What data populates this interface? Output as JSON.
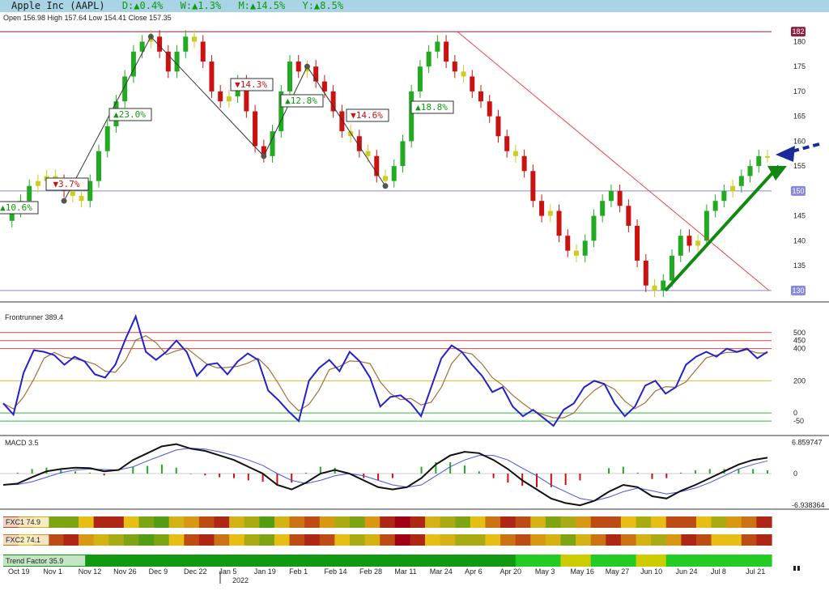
{
  "header": {
    "title": "Apple Inc (AAPL)",
    "d": "D:▲0.4%",
    "w": "W:▲1.3%",
    "m": "M:▲14.5%",
    "y": "Y:▲8.5%"
  },
  "ohlc": {
    "text": "Open 156.98  High 157.64  Low 154.41  Close 157.35"
  },
  "colors": {
    "up": "#22aa22",
    "down": "#cc1111",
    "neutral": "#cccc22",
    "blue": "#2222cc",
    "brown": "#a0703a"
  },
  "chart_data": [
    {
      "type": "candlestick",
      "title": "",
      "yticks": [
        130,
        135,
        140,
        145,
        150,
        155,
        160,
        165,
        170,
        175,
        180
      ],
      "ylim": [
        129,
        183
      ],
      "hlines": [
        {
          "value": 182,
          "label": "182",
          "color": "#8b2040"
        },
        {
          "value": 150,
          "label": "150",
          "color": "#8888dd"
        },
        {
          "value": 130,
          "label": "130",
          "color": "#8888dd"
        }
      ],
      "close_path": [
        144,
        146,
        148,
        151,
        152,
        153,
        152,
        150,
        149,
        148,
        152,
        158,
        163,
        168,
        173,
        178,
        180,
        181,
        178,
        174,
        178,
        181,
        180,
        176,
        170,
        168,
        169,
        172,
        166,
        159,
        157,
        162,
        170,
        176,
        174,
        175,
        172,
        170,
        166,
        162,
        161,
        158,
        157,
        153,
        152,
        155,
        160,
        170,
        175,
        178,
        180,
        176,
        174,
        173,
        170,
        168,
        165,
        161,
        158,
        157,
        154,
        148,
        145,
        146,
        141,
        138,
        137,
        140,
        145,
        148,
        150,
        147,
        143,
        136,
        131,
        130,
        132,
        137,
        141,
        139,
        140,
        146,
        148,
        150,
        151,
        153,
        155,
        157,
        157
      ],
      "pivots": [
        {
          "idx": 7,
          "value": 148,
          "label": "▲23.0%",
          "dir": "up"
        },
        {
          "idx": 17,
          "value": 181,
          "label": "▼14.3%",
          "dir": "down"
        },
        {
          "idx": 30,
          "value": 157,
          "label": "▲12.8%",
          "dir": "up"
        },
        {
          "idx": 35,
          "value": 175,
          "label": "▼14.6%",
          "dir": "down"
        },
        {
          "idx": 44,
          "value": 151,
          "label": "▲18.8%",
          "dir": "up"
        }
      ],
      "pct_labels": [
        "▲10.6%",
        "▼3.7%",
        "▲23.0%",
        "▼14.3%",
        "▲12.8%",
        "▼14.6%",
        "▲18.8%"
      ]
    },
    {
      "type": "line",
      "title": "Frontrunner 389.4",
      "yticks": [
        500,
        450,
        400,
        200,
        0,
        -50
      ],
      "ylim": [
        -100,
        640
      ],
      "series": [
        {
          "values": [
            60,
            -10,
            250,
            390,
            380,
            360,
            300,
            350,
            320,
            240,
            220,
            300,
            460,
            600,
            380,
            330,
            380,
            450,
            380,
            230,
            300,
            310,
            240,
            320,
            370,
            330,
            140,
            80,
            10,
            -50,
            200,
            280,
            330,
            260,
            380,
            320,
            220,
            40,
            100,
            110,
            60,
            -20,
            160,
            340,
            420,
            380,
            300,
            230,
            130,
            160,
            40,
            -20,
            20,
            -30,
            -80,
            20,
            60,
            160,
            200,
            180,
            60,
            -20,
            40,
            170,
            200,
            120,
            160,
            300,
            350,
            380,
            350,
            400,
            380,
            400,
            340,
            380
          ]
        }
      ]
    },
    {
      "type": "line",
      "title": "MACD 3.5",
      "yticks": [
        6.859747,
        0,
        -6.938364
      ],
      "ylim": [
        -7.5,
        7.5
      ],
      "series": [
        {
          "name": "MACD",
          "values": [
            -2.5,
            -2.2,
            -0.8,
            0.5,
            1.0,
            1.3,
            1.2,
            0.5,
            0.8,
            3.0,
            4.5,
            6.0,
            6.5,
            5.5,
            5.0,
            4.0,
            3.0,
            1.5,
            0,
            -2.5,
            -3.5,
            -2.0,
            0,
            0.8,
            0,
            -1.5,
            -3.0,
            -3.5,
            -3.0,
            -1.0,
            2.0,
            4.0,
            4.8,
            4.5,
            3.0,
            1.0,
            -1.5,
            -3.5,
            -5.5,
            -6.5,
            -7.0,
            -6.0,
            -4.0,
            -2.5,
            -3.0,
            -5.0,
            -5.5,
            -3.8,
            -2.5,
            -1.0,
            0.5,
            2.0,
            3.0,
            3.5
          ]
        },
        {
          "name": "Signal",
          "values": [
            -2.5,
            -2.4,
            -1.8,
            -0.8,
            0.2,
            0.8,
            1.0,
            0.9,
            0.8,
            1.5,
            2.8,
            4.0,
            5.2,
            5.6,
            5.4,
            4.8,
            4.0,
            3.0,
            1.8,
            0,
            -1.5,
            -2.2,
            -1.5,
            -0.5,
            0,
            -0.5,
            -1.5,
            -2.5,
            -3.0,
            -2.5,
            -0.5,
            1.5,
            3.0,
            4.0,
            4.0,
            3.0,
            1.2,
            -0.5,
            -2.5,
            -4.0,
            -5.5,
            -6.0,
            -5.2,
            -4.0,
            -3.2,
            -3.8,
            -4.5,
            -4.0,
            -3.2,
            -2.0,
            -0.5,
            1.0,
            2.0,
            2.8
          ]
        }
      ]
    },
    {
      "type": "heatmap",
      "rows": [
        {
          "label": "FXC1 74.9",
          "values": [
            0.8,
            0.6,
            0.4,
            0.2,
            0.2,
            0.5,
            0.9,
            0.9,
            0.5,
            0.2,
            0.1,
            0.4,
            0.6,
            0.8,
            0.9,
            0.4,
            0.3,
            0.1,
            0.4,
            0.7,
            0.8,
            0.6,
            0.3,
            0.2,
            0.6,
            0.9,
            1.0,
            0.9,
            0.4,
            0.3,
            0.2,
            0.5,
            0.7,
            0.9,
            0.8,
            0.4,
            0.2,
            0.3,
            0.6,
            0.8,
            0.8,
            0.5,
            0.3,
            0.5,
            0.8,
            0.8,
            0.5,
            0.3,
            0.6,
            0.7,
            0.9
          ]
        },
        {
          "label": "FXC2 74.1",
          "values": [
            0.7,
            0.5,
            0.6,
            0.8,
            0.9,
            0.6,
            0.4,
            0.3,
            0.2,
            0.1,
            0.2,
            0.5,
            0.8,
            0.9,
            0.7,
            0.5,
            0.3,
            0.2,
            0.5,
            0.8,
            0.9,
            0.8,
            0.5,
            0.3,
            0.4,
            0.8,
            1.0,
            0.9,
            0.5,
            0.4,
            0.3,
            0.3,
            0.5,
            0.7,
            0.8,
            0.6,
            0.4,
            0.2,
            0.4,
            0.7,
            0.9,
            0.7,
            0.4,
            0.3,
            0.6,
            0.9,
            0.8,
            0.5,
            0.5,
            0.8,
            0.9
          ]
        },
        {
          "label": "Trend Factor 35.9",
          "values": [
            0.15,
            0.15,
            0.15,
            0.15,
            0.15,
            0.15,
            0.15,
            0.15,
            0.15,
            0.15,
            0.15,
            0.15,
            0.15,
            0.15,
            0.15,
            0.15,
            0.15,
            0.15,
            0.15,
            0.15,
            0.15,
            0.15,
            0.15,
            0.15,
            0.15,
            0.15,
            0.15,
            0.15,
            0.15,
            0.15,
            0.15,
            0.15,
            0.15,
            0.15,
            0.3,
            0.3,
            0.3,
            0.55,
            0.55,
            0.3,
            0.45,
            0.3,
            0.55,
            0.55,
            0.3,
            0.3,
            0.3,
            0.3,
            0.3,
            0.3,
            0.3
          ]
        }
      ]
    },
    {
      "type": "axis",
      "xticks": [
        "Oct 19",
        "Nov 1",
        "Nov 12",
        "Nov 26",
        "Dec 9",
        "Dec 22",
        "Jan 5",
        "Jan 19",
        "Feb 1",
        "Feb 14",
        "Feb 28",
        "Mar 11",
        "Mar 24",
        "Apr 6",
        "Apr 20",
        "May 3",
        "May 16",
        "May 27",
        "Jun 10",
        "Jun 24",
        "Jul 8",
        "Jul 21"
      ],
      "year_label": "2022"
    }
  ]
}
